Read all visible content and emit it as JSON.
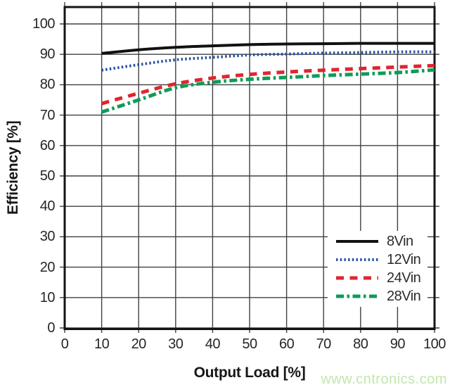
{
  "watermark": {
    "text": "www.cntronics.com",
    "color": "#c2e6ae"
  },
  "colors": {
    "frame": "#141414",
    "grid": "#404040",
    "tick_text": "#262626"
  },
  "chart_data": {
    "type": "line",
    "title": "",
    "xlabel": "Output Load [%]",
    "ylabel": "Efficiency [%]",
    "xlim": [
      0,
      100
    ],
    "ylim": [
      0,
      105.5
    ],
    "grid": true,
    "legend_position": "bottom-right",
    "x_ticks": [
      0,
      10,
      20,
      30,
      40,
      50,
      60,
      70,
      80,
      90,
      100
    ],
    "y_ticks": [
      0,
      10,
      20,
      30,
      40,
      50,
      60,
      70,
      80,
      90,
      100
    ],
    "x": [
      10,
      20,
      30,
      40,
      50,
      60,
      70,
      80,
      90,
      100
    ],
    "series": [
      {
        "name": "8Vin",
        "color": "#111111",
        "style": "solid",
        "width": 4,
        "dash": "",
        "values": [
          90.3,
          91.5,
          92.3,
          92.8,
          93.2,
          93.4,
          93.5,
          93.6,
          93.6,
          93.6
        ]
      },
      {
        "name": "12Vin",
        "color": "#2a52a0",
        "style": "dotted",
        "width": 4,
        "dash": "2.5 3.2",
        "values": [
          84.8,
          86.6,
          88.2,
          89.0,
          89.8,
          90.1,
          90.4,
          90.6,
          90.8,
          90.8
        ]
      },
      {
        "name": "24Vin",
        "color": "#e0252f",
        "style": "dashed",
        "width": 5,
        "dash": "11 8.5",
        "values": [
          73.8,
          77.2,
          80.3,
          82.2,
          83.4,
          84.2,
          84.8,
          85.3,
          85.8,
          86.3
        ]
      },
      {
        "name": "28Vin",
        "color": "#0d9c57",
        "style": "dashdot",
        "width": 5,
        "dash": "11 4.5 3.5 4.5",
        "values": [
          71.0,
          75.0,
          79.0,
          80.8,
          81.8,
          82.4,
          83.0,
          83.5,
          84.0,
          84.9
        ]
      }
    ]
  }
}
